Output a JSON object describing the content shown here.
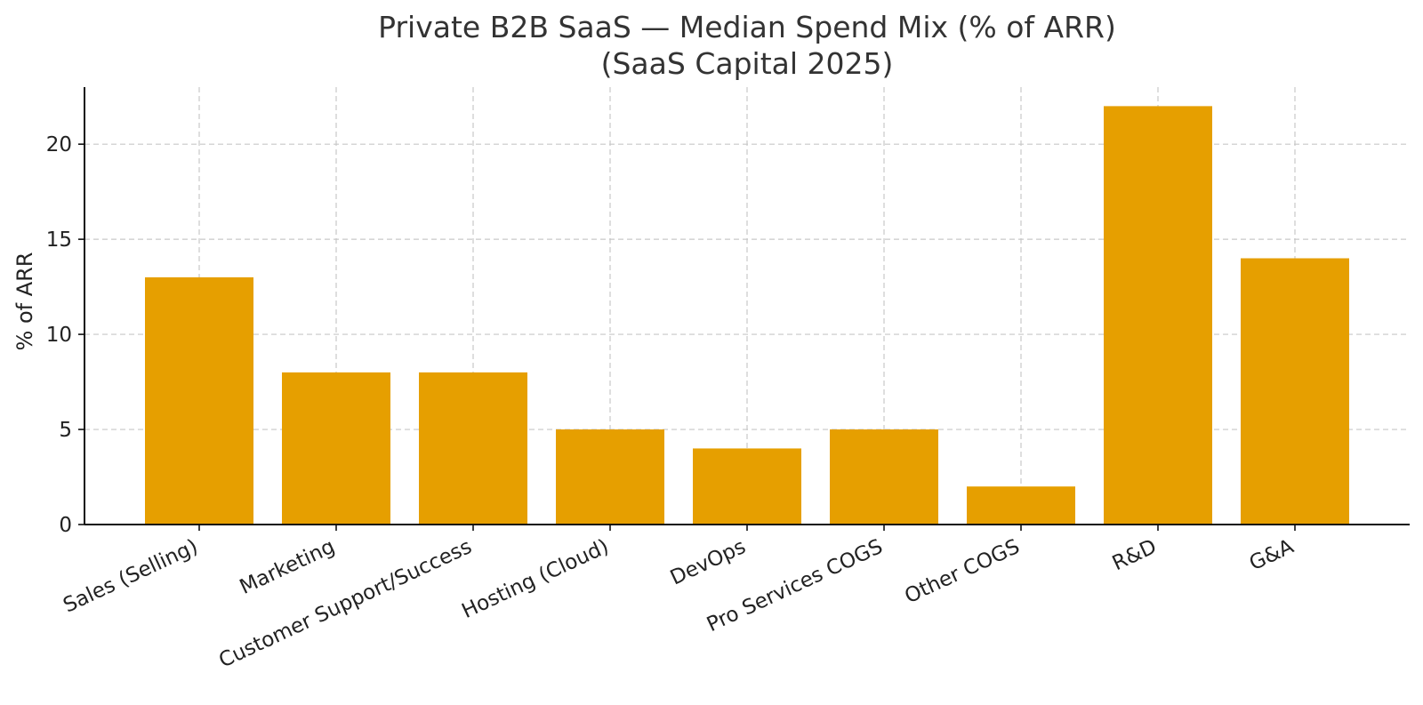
{
  "chart_data": {
    "type": "bar",
    "title": "Private B2B SaaS — Median Spend Mix (% of ARR)",
    "subtitle": "(SaaS Capital 2025)",
    "xlabel": "",
    "ylabel": "% of ARR",
    "categories": [
      "Sales (Selling)",
      "Marketing",
      "Customer Support/Success",
      "Hosting (Cloud)",
      "DevOps",
      "Pro Services COGS",
      "Other COGS",
      "R&D",
      "G&A"
    ],
    "values": [
      13,
      8,
      8,
      5,
      4,
      5,
      2,
      22,
      14
    ],
    "ylim": [
      0,
      23
    ],
    "yticks": [
      0,
      5,
      10,
      15,
      20
    ],
    "grid": true,
    "bar_color": "#E69F00",
    "legend": null
  }
}
